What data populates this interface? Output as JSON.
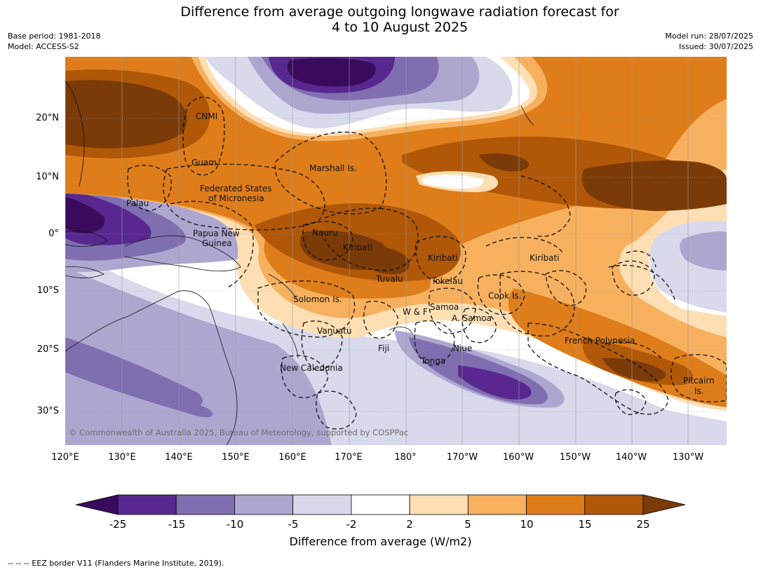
{
  "header": {
    "title_line1": "Difference from average outgoing longwave radiation forecast for",
    "title_line2": "4 to 10 August 2025",
    "base_period": "Base period: 1981-2018",
    "model": "Model: ACCESS-S2",
    "model_run": "Model run: 28/07/2025",
    "issued": "Issued: 30/07/2025"
  },
  "map": {
    "lon_ticks": [
      "120°E",
      "130°E",
      "140°E",
      "150°E",
      "160°E",
      "170°E",
      "180°",
      "170°W",
      "160°W",
      "150°W",
      "140°W",
      "130°W"
    ],
    "lat_ticks": [
      "20°N",
      "10°N",
      "0°",
      "10°S",
      "20°S",
      "30°S"
    ],
    "places": {
      "cnmi": "CNMI",
      "guam": "Guam",
      "fsm1": "Federated States",
      "fsm2": "of Micronesia",
      "marshall": "Marshall Is.",
      "palau": "Palau",
      "png1": "Papua New",
      "png2": "Guinea",
      "nauru": "Nauru",
      "kiribati_w": "Kiribati",
      "kiribati_c": "Kiribati",
      "kiribati_e": "Kiribati",
      "tuvalu": "Tuvalu",
      "tokelau": "Tokelau",
      "cook": "Cook Is.",
      "solomon": "Solomon Is.",
      "wf": "W & F",
      "samoa": "Samoa",
      "asamoa": "A. Samoa",
      "vanuatu": "Vanuatu",
      "fiji": "Fiji",
      "niue": "Niue",
      "tonga": "Tonga",
      "frpoly": "French Polynesia",
      "newcal": "New Caledonia",
      "pitcairn1": "Pitcairn",
      "pitcairn2": "Is."
    },
    "copyright": "© Commonwealth of Australia 2025, Bureau of Meteorology, supported by COSPPac"
  },
  "colorbar": {
    "ticks": [
      "-25",
      "-15",
      "-10",
      "-5",
      "-2",
      "2",
      "5",
      "10",
      "15",
      "25"
    ],
    "colors": [
      "#3a0b5c",
      "#582890",
      "#7f6eb0",
      "#ada7d0",
      "#d9d9ec",
      "#ffffff",
      "#fedfb4",
      "#f7b05e",
      "#de7d1a",
      "#b05808",
      "#7b3b08"
    ],
    "label": "Difference from average (W/m2)"
  },
  "footnote": "--  --  -- EEZ border V11 (Flanders Marine Institute, 2019)."
}
